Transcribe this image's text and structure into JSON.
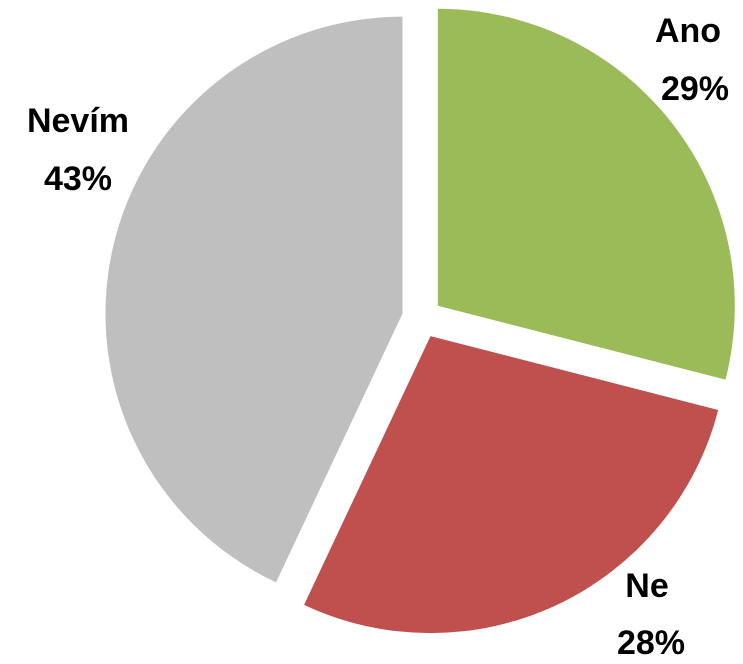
{
  "chart_data": {
    "type": "pie",
    "title": "",
    "slices": [
      {
        "label": "Ano",
        "value": 29,
        "value_text": "29%",
        "color": "#9BBB59"
      },
      {
        "label": "Ne",
        "value": 28,
        "value_text": "28%",
        "color": "#C0504D"
      },
      {
        "label": "Nevím",
        "value": 43,
        "value_text": "43%",
        "color": "#BFBFBF"
      }
    ],
    "start_angle": "12 o'clock",
    "direction": "clockwise",
    "exploded": true,
    "legend": "none",
    "data_labels": "outside, category name and percentage"
  }
}
